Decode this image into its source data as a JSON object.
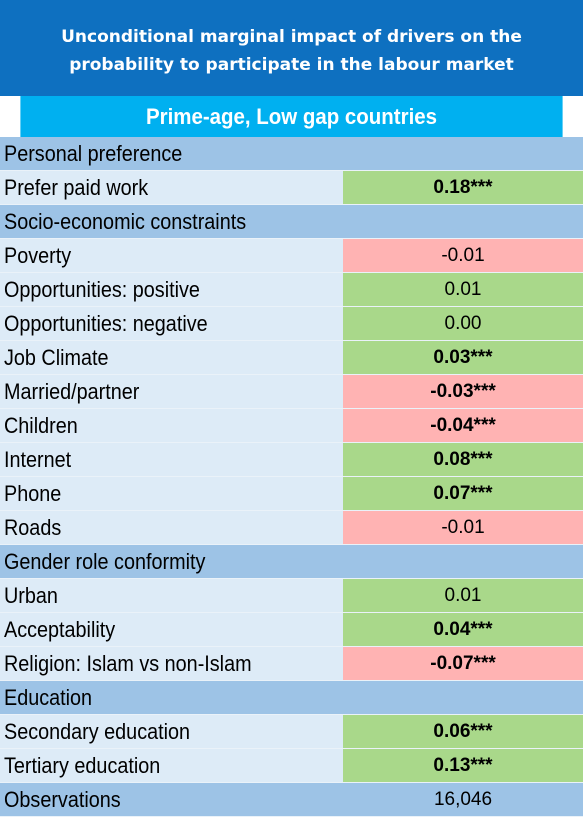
{
  "title": {
    "line1": "Unconditional marginal impact of drivers on the",
    "line2": "probability to participate in the labour market"
  },
  "subtitle": "Prime-age, Low gap countries",
  "rows": [
    {
      "label": "Personal preference",
      "type": "section"
    },
    {
      "label": "Prefer paid work",
      "type": "item",
      "value": "0.18***",
      "bold": true,
      "sign": "pos"
    },
    {
      "label": "Socio-economic constraints",
      "type": "section"
    },
    {
      "label": "Poverty",
      "type": "item",
      "value": "-0.01",
      "bold": false,
      "sign": "neg"
    },
    {
      "label": "Opportunities: positive",
      "type": "item",
      "value": "0.01",
      "bold": false,
      "sign": "pos"
    },
    {
      "label": "Opportunities: negative",
      "type": "item",
      "value": "0.00",
      "bold": false,
      "sign": "pos"
    },
    {
      "label": "Job Climate",
      "type": "item",
      "value": "0.03***",
      "bold": true,
      "sign": "pos"
    },
    {
      "label": "Married/partner",
      "type": "item",
      "value": "-0.03***",
      "bold": true,
      "sign": "neg"
    },
    {
      "label": "Children",
      "type": "item",
      "value": "-0.04***",
      "bold": true,
      "sign": "neg"
    },
    {
      "label": "Internet",
      "type": "item",
      "value": "0.08***",
      "bold": true,
      "sign": "pos"
    },
    {
      "label": "Phone",
      "type": "item",
      "value": "0.07***",
      "bold": true,
      "sign": "pos"
    },
    {
      "label": "Roads",
      "type": "item",
      "value": "-0.01",
      "bold": false,
      "sign": "neg"
    },
    {
      "label": "Gender role conformity",
      "type": "section"
    },
    {
      "label": "Urban",
      "type": "item",
      "value": "0.01",
      "bold": false,
      "sign": "pos"
    },
    {
      "label": "Acceptability",
      "type": "item",
      "value": "0.04***",
      "bold": true,
      "sign": "pos"
    },
    {
      "label": "Religion: Islam vs non-Islam",
      "type": "item",
      "value": "-0.07***",
      "bold": true,
      "sign": "neg"
    },
    {
      "label": "Education",
      "type": "section"
    },
    {
      "label": "Secondary education",
      "type": "item",
      "value": "0.06***",
      "bold": true,
      "sign": "pos"
    },
    {
      "label": "Tertiary education",
      "type": "item",
      "value": "0.13***",
      "bold": true,
      "sign": "pos"
    },
    {
      "label": "Observations",
      "type": "obs",
      "value": "16,046",
      "bold": false,
      "sign": ""
    }
  ],
  "colors": {
    "title_bg": "#0e70c0",
    "subtitle_bg": "#00b0f0",
    "section_bg": "#9dc3e6",
    "item_bg": "#ddebf7",
    "positive_cell": "#a9d88a",
    "negative_cell": "#ffb3b3"
  }
}
